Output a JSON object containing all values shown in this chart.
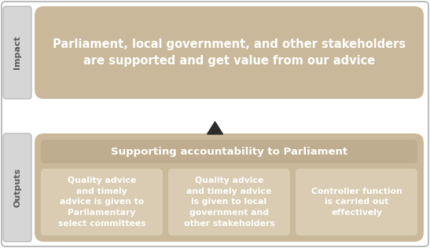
{
  "bg_color": "#ffffff",
  "tan_box": "#c9b99a",
  "tan_header": "#bfad90",
  "tan_subbox": "#d9ccb2",
  "label_bg": "#d6d6d6",
  "label_text_color": "#5a5a5a",
  "white_text": "#ffffff",
  "impact_label": "Impact",
  "outputs_label": "Outputs",
  "impact_text": "Parliament, local government, and other stakeholders\nare supported and get value from our advice",
  "outputs_title": "Supporting accountability to Parliament",
  "box1_text": "Quality advice\nand timely\nadvice is given to\nParliamentary\nselect committees",
  "box2_text": "Quality advice\nand timely advice\nis given to local\ngovernment and\nother stakeholders",
  "box3_text": "Controller function\nis carried out\neffectively",
  "arrow_color": "#2d2d2d",
  "outer_edge": "#b0b0b0"
}
